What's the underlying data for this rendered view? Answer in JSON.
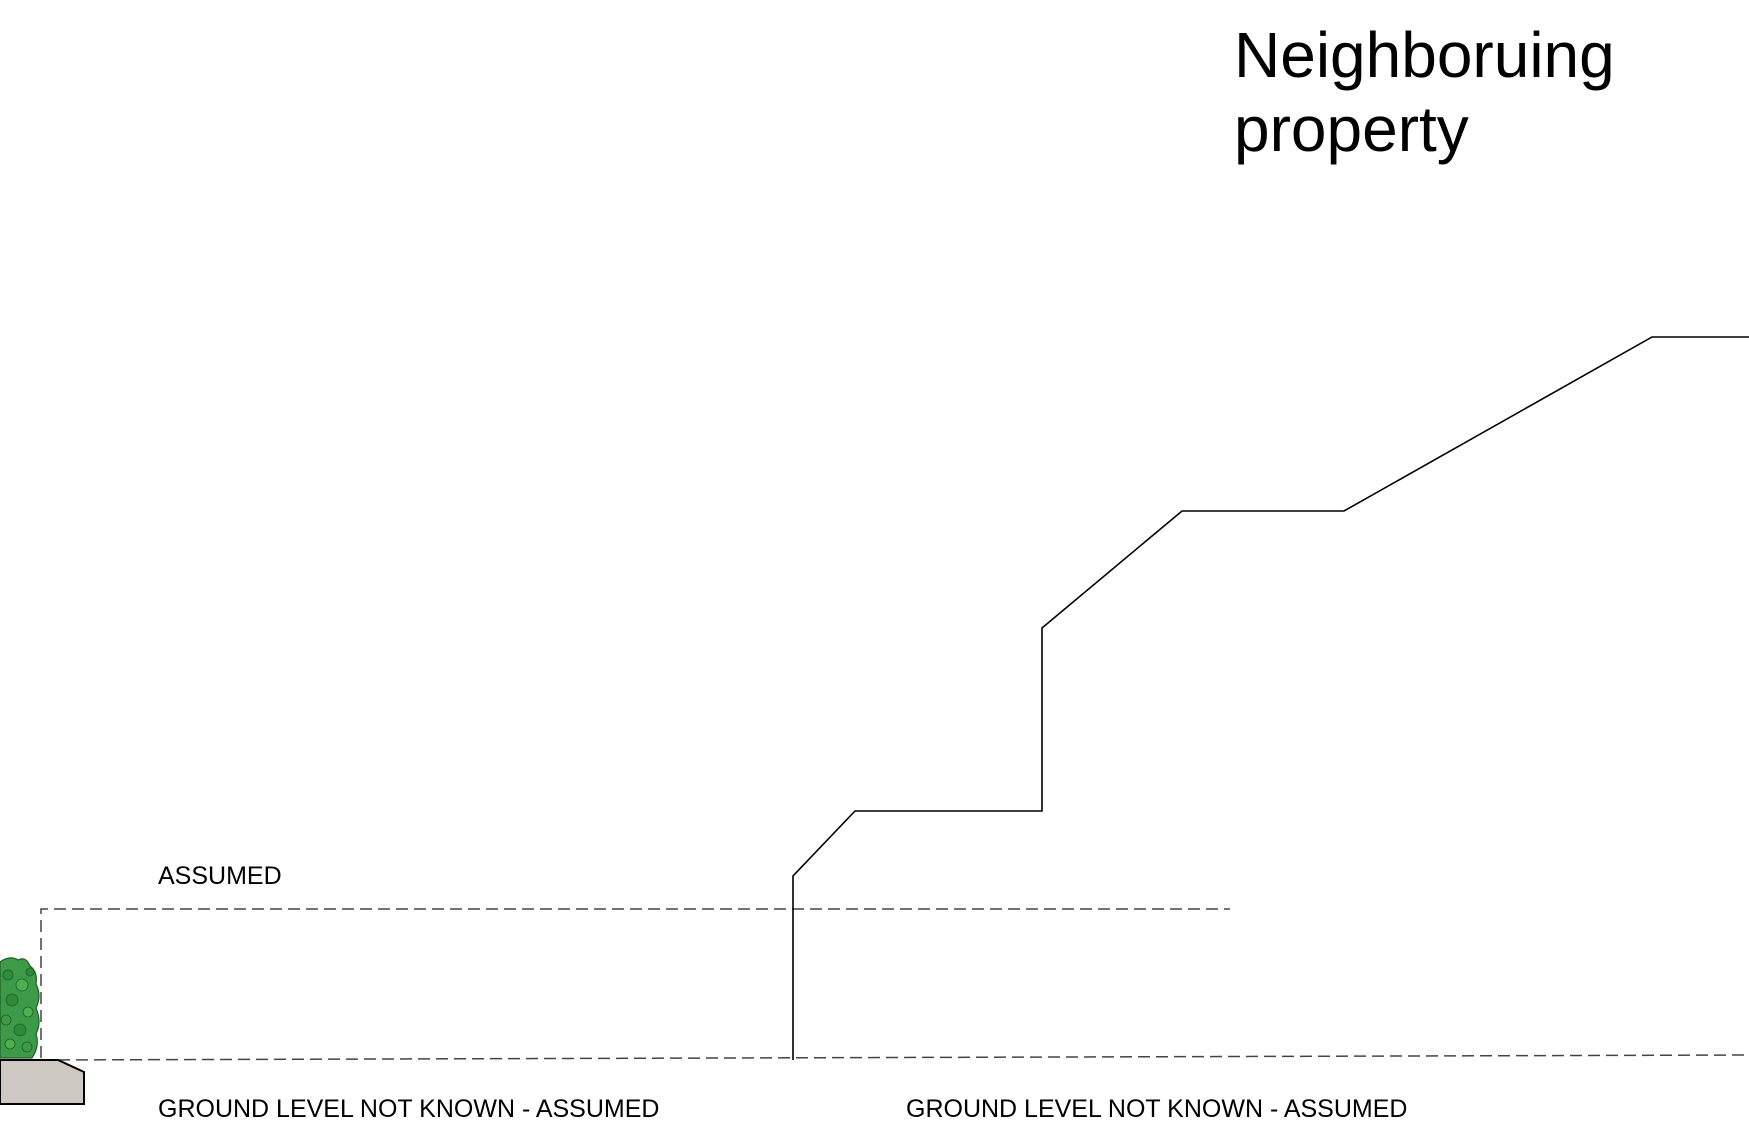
{
  "title": {
    "line1": "Neighboruing",
    "line2": "property"
  },
  "labels": {
    "assumed": "ASSUMED",
    "ground_left": "GROUND LEVEL NOT KNOWN - ASSUMED",
    "ground_right": "GROUND LEVEL NOT KNOWN - ASSUMED"
  },
  "colors": {
    "line": "#000000",
    "dashed_line": "#444444",
    "hedge": "#2e8b3a",
    "hedge_dark": "#1f5e28",
    "paving": "#cdc8c2"
  }
}
